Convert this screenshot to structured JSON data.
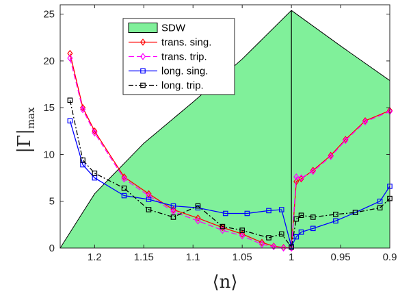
{
  "chart_data": {
    "type": "line",
    "xlabel": "⟨n⟩",
    "ylabel": {
      "main": "|Γ|",
      "sub": "max"
    },
    "xlim": [
      0.9,
      1.235
    ],
    "ylim": [
      0,
      26
    ],
    "x_reversed": true,
    "x_ticks": [
      1.2,
      1.15,
      1.1,
      1.05,
      1,
      0.95,
      0.9
    ],
    "x_tick_labels": [
      "1.2",
      "1.15",
      "1.1",
      "1.05",
      "1",
      "0.95",
      "0.9"
    ],
    "y_ticks": [
      0,
      5,
      10,
      15,
      20,
      25
    ],
    "y_tick_labels": [
      "0",
      "5",
      "10",
      "15",
      "20",
      "25"
    ],
    "grid": false,
    "legend_position": "top-center",
    "area": {
      "name": "SDW",
      "color": "#80f09a",
      "edge_color": "#000000",
      "x": [
        1.235,
        1.2,
        1.15,
        1.1,
        1.05,
        1.0,
        0.95,
        0.9
      ],
      "y": [
        0,
        5.8,
        11.2,
        15.6,
        20.2,
        25.4,
        21.6,
        17.9
      ],
      "peak_line_x": 1.0
    },
    "series": [
      {
        "name": "trans. sing.",
        "color": "#ff0000",
        "dash": "",
        "marker": "diamond",
        "x": [
          1.225,
          1.212,
          1.2,
          1.17,
          1.145,
          1.12,
          1.095,
          1.07,
          1.05,
          1.03,
          1.018,
          1.008,
          1.0,
          0.995,
          0.99,
          0.978,
          0.96,
          0.945,
          0.925,
          0.9
        ],
        "y": [
          20.8,
          15.0,
          12.5,
          7.6,
          5.8,
          4.1,
          3.2,
          2.2,
          1.5,
          0.6,
          0.2,
          0.05,
          0.0,
          7.1,
          7.4,
          8.3,
          9.9,
          11.6,
          13.6,
          14.7
        ]
      },
      {
        "name": "trans. trip.",
        "color": "#ff00ff",
        "dash": "8,4",
        "marker": "diamond",
        "x": [
          1.225,
          1.212,
          1.2,
          1.17,
          1.145,
          1.12,
          1.095,
          1.07,
          1.05,
          1.03,
          1.018,
          1.008,
          1.0,
          0.995,
          0.99,
          0.978,
          0.96,
          0.945,
          0.925,
          0.9
        ],
        "y": [
          20.3,
          14.8,
          12.3,
          7.4,
          5.6,
          3.9,
          2.9,
          1.9,
          1.3,
          0.4,
          0.15,
          0.0,
          0.0,
          7.6,
          7.5,
          8.2,
          9.8,
          11.5,
          13.5,
          14.6
        ]
      },
      {
        "name": "long. sing.",
        "color": "#0000ff",
        "dash": "",
        "marker": "square",
        "x": [
          1.225,
          1.212,
          1.2,
          1.17,
          1.145,
          1.12,
          1.095,
          1.067,
          1.045,
          1.023,
          1.01,
          1.0,
          0.995,
          0.99,
          0.978,
          0.955,
          0.935,
          0.91,
          0.9
        ],
        "y": [
          13.6,
          8.9,
          7.5,
          5.6,
          5.2,
          4.5,
          4.3,
          3.7,
          3.7,
          4.0,
          4.1,
          0.15,
          1.2,
          1.7,
          2.1,
          2.9,
          3.8,
          5.0,
          6.6
        ]
      },
      {
        "name": "long. trip.",
        "color": "#000000",
        "dash": "7,3,2,3",
        "marker": "square",
        "x": [
          1.225,
          1.212,
          1.2,
          1.17,
          1.145,
          1.12,
          1.095,
          1.07,
          1.05,
          1.023,
          1.01,
          1.0,
          0.995,
          0.99,
          0.978,
          0.955,
          0.935,
          0.91,
          0.9
        ],
        "y": [
          15.8,
          9.4,
          8.0,
          6.4,
          4.1,
          3.3,
          4.5,
          2.3,
          1.9,
          1.1,
          1.5,
          0.1,
          3.1,
          3.5,
          3.3,
          3.6,
          3.8,
          4.3,
          5.3
        ]
      }
    ]
  }
}
